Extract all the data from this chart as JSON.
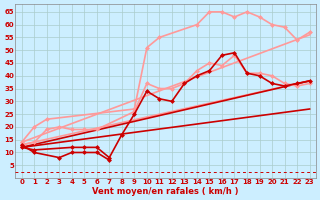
{
  "bg_color": "#cceeff",
  "grid_color": "#aacccc",
  "title": "Vent moyen/en rafales ( km/h )",
  "xlabel_color": "#cc0000",
  "xlim": [
    -0.5,
    23.5
  ],
  "ylim": [
    0,
    68
  ],
  "yticks": [
    5,
    10,
    15,
    20,
    25,
    30,
    35,
    40,
    45,
    50,
    55,
    60,
    65
  ],
  "xticks": [
    0,
    1,
    2,
    3,
    4,
    5,
    6,
    7,
    8,
    9,
    10,
    11,
    12,
    13,
    14,
    15,
    16,
    17,
    18,
    19,
    20,
    21,
    22,
    23
  ],
  "series": [
    {
      "x": [
        0,
        1,
        2,
        9,
        10,
        11,
        14,
        15,
        16,
        17,
        18,
        19,
        20,
        21,
        22,
        23
      ],
      "y": [
        14,
        20,
        23,
        27,
        51,
        55,
        60,
        65,
        65,
        63,
        65,
        63,
        60,
        59,
        54,
        57
      ],
      "color": "#ff9999",
      "lw": 1.2,
      "marker": "D",
      "ms": 2.5
    },
    {
      "x": [
        0,
        1,
        2,
        3,
        4,
        5,
        6,
        9,
        10,
        11,
        12,
        13,
        14,
        15,
        16,
        17,
        18,
        19,
        20,
        21,
        22,
        23
      ],
      "y": [
        13,
        14,
        19,
        20,
        19,
        19,
        19,
        26,
        37,
        35,
        35,
        37,
        42,
        45,
        44,
        48,
        41,
        41,
        40,
        37,
        36,
        37
      ],
      "color": "#ff9999",
      "lw": 1.2,
      "marker": "D",
      "ms": 2.5
    },
    {
      "x": [
        0,
        1,
        4,
        5,
        6,
        7,
        8,
        9,
        10,
        11,
        12,
        13,
        14,
        15,
        16,
        17,
        18,
        19,
        20,
        21,
        22,
        23
      ],
      "y": [
        12,
        11,
        12,
        12,
        12,
        8,
        17,
        25,
        34,
        31,
        30,
        37,
        40,
        42,
        48,
        49,
        41,
        40,
        37,
        36,
        37,
        38
      ],
      "color": "#cc0000",
      "lw": 1.2,
      "marker": "D",
      "ms": 2.5
    },
    {
      "x": [
        0,
        1,
        3,
        4,
        5,
        6,
        7
      ],
      "y": [
        13,
        10,
        8,
        10,
        10,
        10,
        7
      ],
      "color": "#cc0000",
      "lw": 1.2,
      "marker": "D",
      "ms": 2.5
    }
  ],
  "linear_lines": [
    {
      "color": "#ff9999",
      "lw": 1.2,
      "x0": 0,
      "y0": 14,
      "x1": 23,
      "y1": 56
    },
    {
      "color": "#ff9999",
      "lw": 1.2,
      "x0": 0,
      "y0": 13,
      "x1": 23,
      "y1": 38
    },
    {
      "color": "#cc0000",
      "lw": 1.2,
      "x0": 0,
      "y0": 12,
      "x1": 23,
      "y1": 38
    },
    {
      "color": "#cc0000",
      "lw": 1.2,
      "x0": 0,
      "y0": 12,
      "x1": 23,
      "y1": 27
    }
  ],
  "bottom_dashes": {
    "color": "#cc0000",
    "y": 2.5
  }
}
